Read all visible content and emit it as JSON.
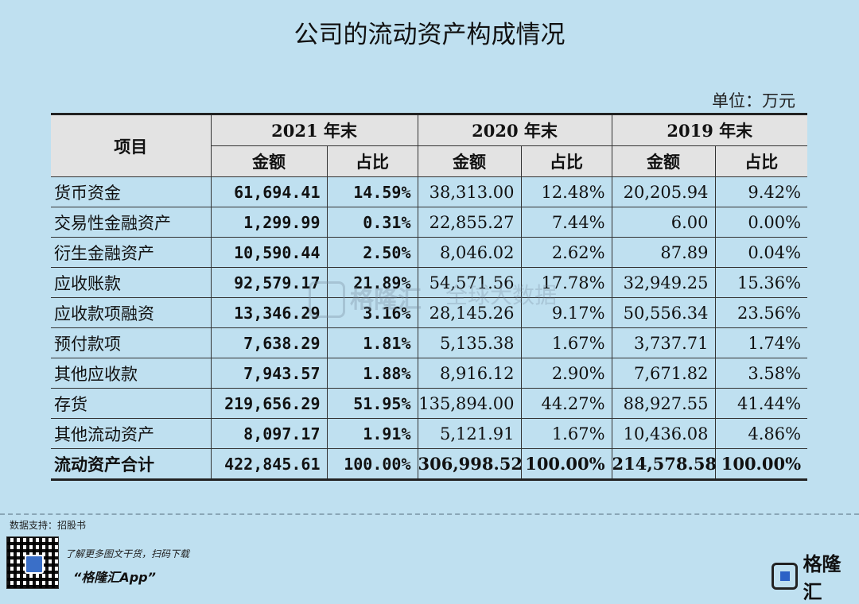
{
  "title": "公司的流动资产构成情况",
  "unit": "单位：万元",
  "table": {
    "item_header": "项目",
    "years": [
      "2021 年末",
      "2020 年末",
      "2019 年末"
    ],
    "sub_headers": [
      "金额",
      "占比"
    ],
    "rows": [
      {
        "name": "货币资金",
        "v": [
          "61,694.41",
          "14.59%",
          "38,313.00",
          "12.48%",
          "20,205.94",
          "9.42%"
        ]
      },
      {
        "name": "交易性金融资产",
        "v": [
          "1,299.99",
          "0.31%",
          "22,855.27",
          "7.44%",
          "6.00",
          "0.00%"
        ]
      },
      {
        "name": "衍生金融资产",
        "v": [
          "10,590.44",
          "2.50%",
          "8,046.02",
          "2.62%",
          "87.89",
          "0.04%"
        ]
      },
      {
        "name": "应收账款",
        "v": [
          "92,579.17",
          "21.89%",
          "54,571.56",
          "17.78%",
          "32,949.25",
          "15.36%"
        ]
      },
      {
        "name": "应收款项融资",
        "v": [
          "13,346.29",
          "3.16%",
          "28,145.26",
          "9.17%",
          "50,556.34",
          "23.56%"
        ]
      },
      {
        "name": "预付款项",
        "v": [
          "7,638.29",
          "1.81%",
          "5,135.38",
          "1.67%",
          "3,737.71",
          "1.74%"
        ]
      },
      {
        "name": "其他应收款",
        "v": [
          "7,943.57",
          "1.88%",
          "8,916.12",
          "2.90%",
          "7,671.82",
          "3.58%"
        ]
      },
      {
        "name": "存货",
        "v": [
          "219,656.29",
          "51.95%",
          "135,894.00",
          "44.27%",
          "88,927.55",
          "41.44%"
        ]
      },
      {
        "name": "其他流动资产",
        "v": [
          "8,097.17",
          "1.91%",
          "5,121.91",
          "1.67%",
          "10,436.08",
          "4.86%"
        ]
      }
    ],
    "total": {
      "name": "流动资产合计",
      "v": [
        "422,845.61",
        "100.00%",
        "306,998.52",
        "100.00%",
        "214,578.58",
        "100.00%"
      ]
    }
  },
  "watermark": {
    "brand": "格隆汇",
    "text": "全球大数据"
  },
  "footer": {
    "source": "数据支持：招股书",
    "promo_line": "了解更多图文干货，扫码下载",
    "app_name": "“格隆汇App”",
    "brand": "格隆汇"
  }
}
